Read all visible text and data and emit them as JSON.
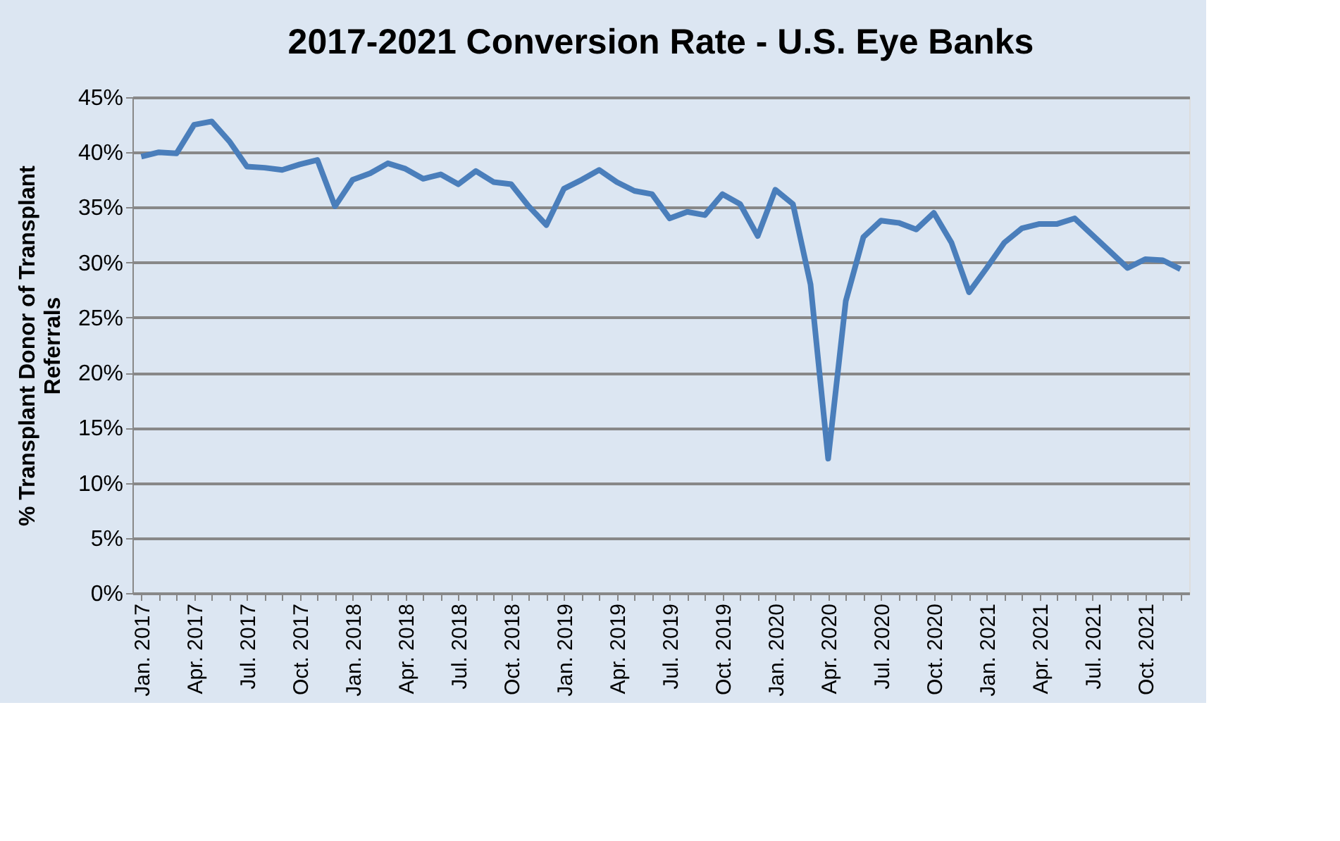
{
  "chart_data": {
    "type": "line",
    "title": "2017-2021 Conversion Rate - U.S. Eye Banks",
    "ylabel": "% Transplant  Donor of Transplant\nReferrals",
    "categories": [
      "Jan. 2017",
      null,
      null,
      "Apr. 2017",
      null,
      null,
      "Jul. 2017",
      null,
      null,
      "Oct. 2017",
      null,
      null,
      "Jan. 2018",
      null,
      null,
      "Apr. 2018",
      null,
      null,
      "Jul. 2018",
      null,
      null,
      "Oct. 2018",
      null,
      null,
      "Jan. 2019",
      null,
      null,
      "Apr. 2019",
      null,
      null,
      "Jul. 2019",
      null,
      null,
      "Oct. 2019",
      null,
      null,
      "Jan. 2020",
      null,
      null,
      "Apr. 2020",
      null,
      null,
      "Jul. 2020",
      null,
      null,
      "Oct. 2020",
      null,
      null,
      "Jan. 2021",
      null,
      null,
      "Apr. 2021",
      null,
      null,
      "Jul. 2021",
      null,
      null,
      "Oct. 2021",
      null,
      null
    ],
    "series": [
      {
        "color": "#4a7ebb",
        "values": [
          39.6,
          40.0,
          39.9,
          42.5,
          42.8,
          41.0,
          38.7,
          38.6,
          38.4,
          38.9,
          39.3,
          35.1,
          37.5,
          38.1,
          39.0,
          38.5,
          37.6,
          38.0,
          37.1,
          38.3,
          37.3,
          37.1,
          35.1,
          33.4,
          36.7,
          37.5,
          38.4,
          37.3,
          36.5,
          36.2,
          34.0,
          34.6,
          34.3,
          36.2,
          35.3,
          32.4,
          36.6,
          35.3,
          28.0,
          12.2,
          26.5,
          32.3,
          33.8,
          33.6,
          33.0,
          34.5,
          31.8,
          27.3,
          29.5,
          31.8,
          33.1,
          33.5,
          33.5,
          34.0,
          32.5,
          31.0,
          29.5,
          30.3,
          30.2,
          29.4
        ]
      }
    ],
    "ylim": [
      0,
      45
    ],
    "yticks": [
      {
        "value": 0,
        "label": "0%"
      },
      {
        "value": 5,
        "label": "5%"
      },
      {
        "value": 10,
        "label": "10%"
      },
      {
        "value": 15,
        "label": "15%"
      },
      {
        "value": 20,
        "label": "20%"
      },
      {
        "value": 25,
        "label": "25%"
      },
      {
        "value": 30,
        "label": "30%"
      },
      {
        "value": 35,
        "label": "35%"
      },
      {
        "value": 40,
        "label": "40%"
      },
      {
        "value": 45,
        "label": "45%"
      }
    ],
    "grid": "y",
    "legend": false,
    "marker": "none",
    "line_style": "solid"
  }
}
